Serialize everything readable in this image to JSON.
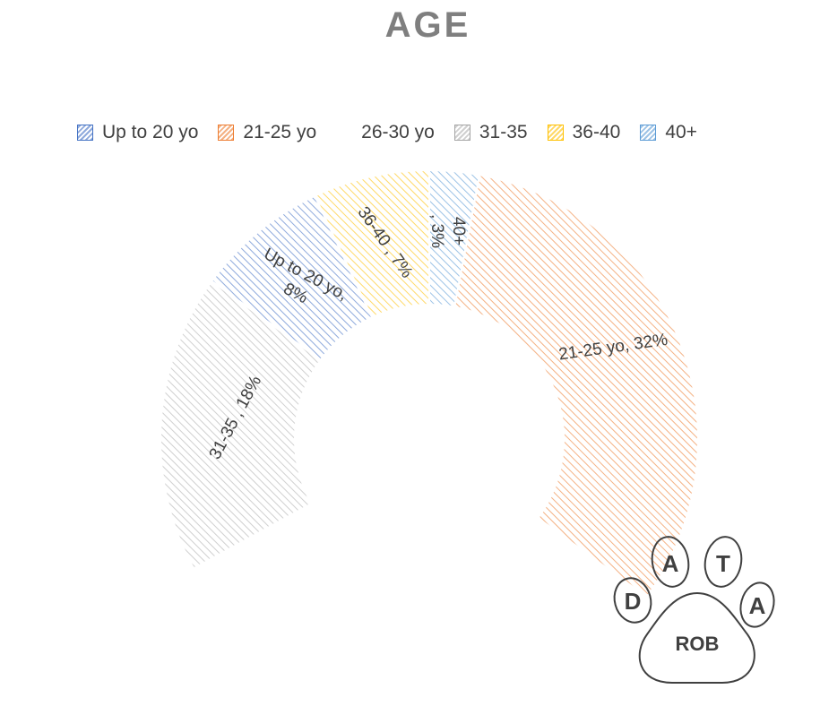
{
  "chart_data": {
    "type": "pie",
    "donut": true,
    "title": "AGE",
    "legend_position": "top",
    "categories": [
      "Up to 20 yo",
      "21-25 yo",
      "26-30 yo",
      "31-35",
      "36-40",
      "40+"
    ],
    "values": [
      8,
      32,
      32,
      18,
      7,
      3
    ],
    "unit": "%",
    "slices": [
      {
        "name": "40+",
        "value": 3,
        "label_lines": [
          "40+",
          ", 3%"
        ],
        "color": "#9dc3e6"
      },
      {
        "name": "21-25 yo",
        "value": 32,
        "label_lines": [
          "21-25 yo, 32%"
        ],
        "color": "#f4b183"
      },
      {
        "name": "26-30 yo",
        "value": 32,
        "label_lines": [],
        "color": "#ffffff"
      },
      {
        "name": "31-35",
        "value": 18,
        "label_lines": [
          "31-35 , 18%"
        ],
        "color": "#d0d0d0"
      },
      {
        "name": "Up to 20 yo",
        "value": 8,
        "label_lines": [
          "Up to 20 yo,",
          "8%"
        ],
        "color": "#8faadc"
      },
      {
        "name": "36-40",
        "value": 7,
        "label_lines": [
          "36-40 , 7%"
        ],
        "color": "#ffd966"
      }
    ],
    "legend": [
      {
        "label": "Up to 20 yo",
        "color": "#8faadc",
        "stroke": "#4472c4"
      },
      {
        "label": "21-25 yo",
        "color": "#f4b183",
        "stroke": "#ed7d31"
      },
      {
        "label": "26-30 yo",
        "color": "#ffffff",
        "stroke": "#ffffff"
      },
      {
        "label": "31-35",
        "color": "#d0d0d0",
        "stroke": "#a5a5a5"
      },
      {
        "label": "36-40",
        "color": "#ffd966",
        "stroke": "#ffc000"
      },
      {
        "label": "40+",
        "color": "#9dc3e6",
        "stroke": "#5b9bd5"
      }
    ]
  },
  "logo": {
    "letters": [
      "D",
      "A",
      "T",
      "A"
    ],
    "text": "ROB"
  }
}
